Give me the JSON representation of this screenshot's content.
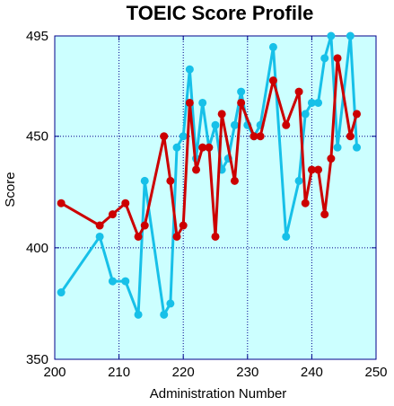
{
  "chart_data": {
    "type": "line",
    "title": "TOEIC Score Profile",
    "xlabel": "Administration Number",
    "ylabel": "Score",
    "xlim": [
      200,
      250
    ],
    "ylim": [
      350,
      495
    ],
    "xticks": [
      200,
      210,
      220,
      230,
      240,
      250
    ],
    "yticks": [
      350,
      400,
      450,
      495
    ],
    "grid": true,
    "legend": "none",
    "colors": {
      "plot_background": "#ccffff",
      "frame": "#00008b",
      "grid": "#00008b",
      "series_blue": "#17c0e8",
      "series_red": "#cc0000"
    },
    "series": [
      {
        "color": "#17c0e8",
        "points": [
          [
            201,
            380
          ],
          [
            207,
            405
          ],
          [
            209,
            385
          ],
          [
            211,
            385
          ],
          [
            213,
            370
          ],
          [
            214,
            430
          ],
          [
            217,
            370
          ],
          [
            218,
            375
          ],
          [
            219,
            445
          ],
          [
            220,
            450
          ],
          [
            221,
            480
          ],
          [
            222,
            440
          ],
          [
            223,
            465
          ],
          [
            224,
            445
          ],
          [
            225,
            455
          ],
          [
            226,
            435
          ],
          [
            227,
            440
          ],
          [
            228,
            455
          ],
          [
            229,
            470
          ],
          [
            230,
            455
          ],
          [
            231,
            450
          ],
          [
            232,
            455
          ],
          [
            234,
            490
          ],
          [
            236,
            405
          ],
          [
            238,
            430
          ],
          [
            239,
            460
          ],
          [
            240,
            465
          ],
          [
            241,
            465
          ],
          [
            242,
            485
          ],
          [
            243,
            495
          ],
          [
            244,
            445
          ],
          [
            246,
            495
          ],
          [
            247,
            445
          ]
        ]
      },
      {
        "color": "#cc0000",
        "points": [
          [
            201,
            420
          ],
          [
            207,
            410
          ],
          [
            209,
            415
          ],
          [
            211,
            420
          ],
          [
            213,
            405
          ],
          [
            214,
            410
          ],
          [
            217,
            450
          ],
          [
            218,
            430
          ],
          [
            219,
            405
          ],
          [
            220,
            410
          ],
          [
            221,
            465
          ],
          [
            222,
            435
          ],
          [
            223,
            445
          ],
          [
            224,
            445
          ],
          [
            225,
            405
          ],
          [
            226,
            460
          ],
          [
            228,
            430
          ],
          [
            229,
            465
          ],
          [
            231,
            450
          ],
          [
            232,
            450
          ],
          [
            234,
            475
          ],
          [
            236,
            455
          ],
          [
            238,
            470
          ],
          [
            239,
            420
          ],
          [
            240,
            435
          ],
          [
            241,
            435
          ],
          [
            242,
            415
          ],
          [
            243,
            440
          ],
          [
            244,
            485
          ],
          [
            246,
            450
          ],
          [
            247,
            460
          ]
        ]
      }
    ]
  }
}
